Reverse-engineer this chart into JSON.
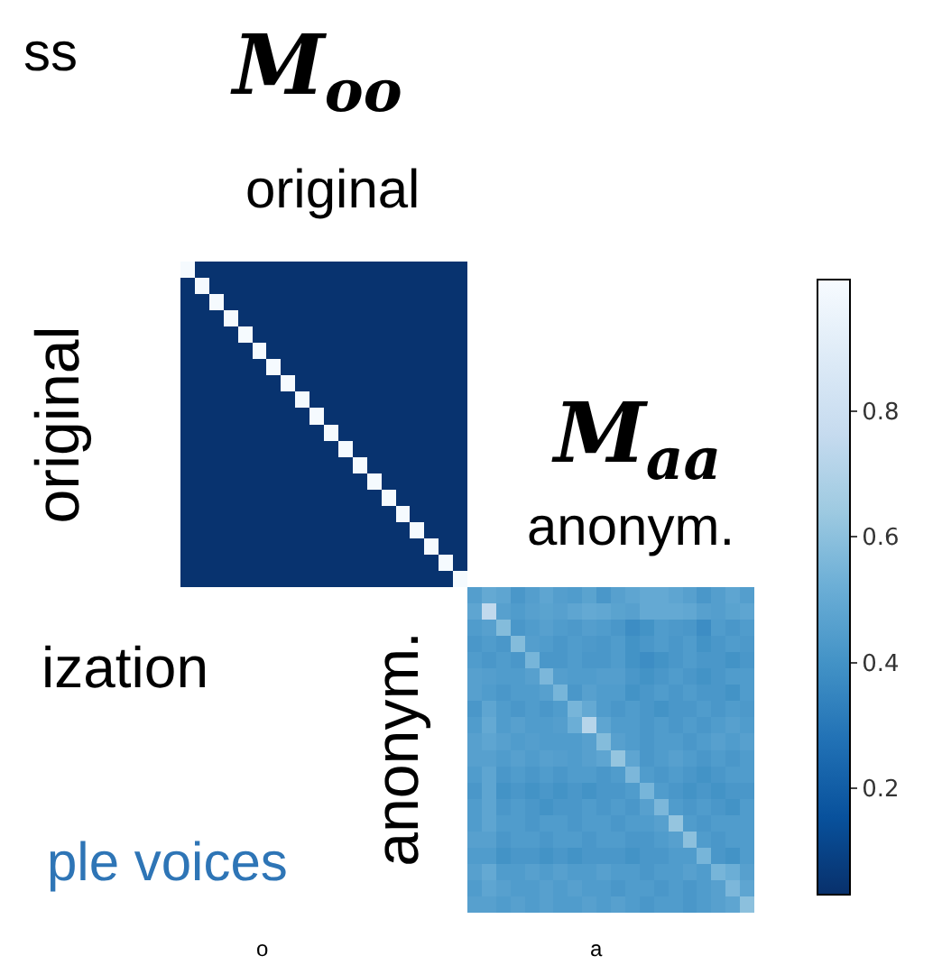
{
  "chart_data": {
    "type": "heatmap",
    "annotations": [
      "M$_{oo}$",
      "original",
      "M$_{aa}$",
      "anonym.",
      "original",
      "anonym.",
      "ss",
      "ization",
      "ple voices",
      "o",
      "a"
    ],
    "categories": [
      null,
      null,
      null,
      null,
      null,
      null,
      null,
      null,
      null,
      null,
      null,
      null,
      null,
      null,
      null,
      null,
      null,
      null,
      null,
      null,
      null,
      null,
      null,
      null,
      null,
      null,
      null,
      null,
      null,
      null,
      null,
      null,
      null,
      null,
      null,
      null,
      null,
      null,
      null,
      null
    ],
    "y_categories": [
      null,
      null,
      null,
      null,
      null,
      null,
      null,
      null,
      null,
      null,
      null,
      null,
      null,
      null,
      null,
      null,
      null,
      null,
      null,
      null,
      null,
      null,
      null,
      null,
      null,
      null,
      null,
      null,
      null,
      null,
      null,
      null,
      null,
      null,
      null,
      null,
      null,
      null,
      null,
      null
    ],
    "clim": [
      0.03,
      1.01
    ],
    "cticks": [
      0.2,
      0.4,
      0.6,
      0.8
    ],
    "cells": [
      [
        1,
        0.04,
        0.04,
        0.04,
        0.04,
        0.04,
        0.04,
        0.04,
        0.04,
        0.04,
        0.04,
        0.04,
        0.04,
        0.04,
        0.04,
        0.04,
        0.04,
        0.04,
        0.04,
        0.04,
        null,
        null,
        null,
        null,
        null,
        null,
        null,
        null,
        null,
        null,
        null,
        null,
        null,
        null,
        null,
        null,
        null,
        null,
        null,
        null
      ],
      [
        0.04,
        1,
        0.04,
        0.04,
        0.04,
        0.04,
        0.04,
        0.04,
        0.04,
        0.04,
        0.04,
        0.04,
        0.04,
        0.04,
        0.04,
        0.04,
        0.04,
        0.04,
        0.04,
        0.04,
        null,
        null,
        null,
        null,
        null,
        null,
        null,
        null,
        null,
        null,
        null,
        null,
        null,
        null,
        null,
        null,
        null,
        null,
        null,
        null
      ],
      [
        0.04,
        0.04,
        1,
        0.04,
        0.04,
        0.04,
        0.04,
        0.04,
        0.04,
        0.04,
        0.04,
        0.04,
        0.04,
        0.04,
        0.04,
        0.04,
        0.04,
        0.04,
        0.04,
        0.04,
        null,
        null,
        null,
        null,
        null,
        null,
        null,
        null,
        null,
        null,
        null,
        null,
        null,
        null,
        null,
        null,
        null,
        null,
        null,
        null
      ],
      [
        0.04,
        0.04,
        0.04,
        1,
        0.04,
        0.04,
        0.04,
        0.04,
        0.04,
        0.04,
        0.04,
        0.04,
        0.04,
        0.04,
        0.04,
        0.04,
        0.04,
        0.04,
        0.04,
        0.04,
        null,
        null,
        null,
        null,
        null,
        null,
        null,
        null,
        null,
        null,
        null,
        null,
        null,
        null,
        null,
        null,
        null,
        null,
        null,
        null
      ],
      [
        0.04,
        0.04,
        0.04,
        0.04,
        1,
        0.04,
        0.04,
        0.04,
        0.04,
        0.04,
        0.04,
        0.04,
        0.04,
        0.04,
        0.04,
        0.04,
        0.04,
        0.04,
        0.04,
        0.04,
        null,
        null,
        null,
        null,
        null,
        null,
        null,
        null,
        null,
        null,
        null,
        null,
        null,
        null,
        null,
        null,
        null,
        null,
        null,
        null
      ],
      [
        0.04,
        0.04,
        0.04,
        0.04,
        0.04,
        1,
        0.04,
        0.04,
        0.04,
        0.04,
        0.04,
        0.04,
        0.04,
        0.04,
        0.04,
        0.04,
        0.04,
        0.04,
        0.04,
        0.04,
        null,
        null,
        null,
        null,
        null,
        null,
        null,
        null,
        null,
        null,
        null,
        null,
        null,
        null,
        null,
        null,
        null,
        null,
        null,
        null
      ],
      [
        0.04,
        0.04,
        0.04,
        0.04,
        0.04,
        0.04,
        1,
        0.04,
        0.04,
        0.04,
        0.04,
        0.04,
        0.04,
        0.04,
        0.04,
        0.04,
        0.04,
        0.04,
        0.04,
        0.04,
        null,
        null,
        null,
        null,
        null,
        null,
        null,
        null,
        null,
        null,
        null,
        null,
        null,
        null,
        null,
        null,
        null,
        null,
        null,
        null
      ],
      [
        0.04,
        0.04,
        0.04,
        0.04,
        0.04,
        0.04,
        0.04,
        1,
        0.04,
        0.04,
        0.04,
        0.04,
        0.04,
        0.04,
        0.04,
        0.04,
        0.04,
        0.04,
        0.04,
        0.04,
        null,
        null,
        null,
        null,
        null,
        null,
        null,
        null,
        null,
        null,
        null,
        null,
        null,
        null,
        null,
        null,
        null,
        null,
        null,
        null
      ],
      [
        0.04,
        0.04,
        0.04,
        0.04,
        0.04,
        0.04,
        0.04,
        0.04,
        1,
        0.04,
        0.04,
        0.04,
        0.04,
        0.04,
        0.04,
        0.04,
        0.04,
        0.04,
        0.04,
        0.04,
        null,
        null,
        null,
        null,
        null,
        null,
        null,
        null,
        null,
        null,
        null,
        null,
        null,
        null,
        null,
        null,
        null,
        null,
        null,
        null
      ],
      [
        0.04,
        0.04,
        0.04,
        0.04,
        0.04,
        0.04,
        0.04,
        0.04,
        0.04,
        1,
        0.04,
        0.04,
        0.04,
        0.04,
        0.04,
        0.04,
        0.04,
        0.04,
        0.04,
        0.04,
        null,
        null,
        null,
        null,
        null,
        null,
        null,
        null,
        null,
        null,
        null,
        null,
        null,
        null,
        null,
        null,
        null,
        null,
        null,
        null
      ],
      [
        0.04,
        0.04,
        0.04,
        0.04,
        0.04,
        0.04,
        0.04,
        0.04,
        0.04,
        0.04,
        1,
        0.04,
        0.04,
        0.04,
        0.04,
        0.04,
        0.04,
        0.04,
        0.04,
        0.04,
        null,
        null,
        null,
        null,
        null,
        null,
        null,
        null,
        null,
        null,
        null,
        null,
        null,
        null,
        null,
        null,
        null,
        null,
        null,
        null
      ],
      [
        0.04,
        0.04,
        0.04,
        0.04,
        0.04,
        0.04,
        0.04,
        0.04,
        0.04,
        0.04,
        0.04,
        1,
        0.04,
        0.04,
        0.04,
        0.04,
        0.04,
        0.04,
        0.04,
        0.04,
        null,
        null,
        null,
        null,
        null,
        null,
        null,
        null,
        null,
        null,
        null,
        null,
        null,
        null,
        null,
        null,
        null,
        null,
        null,
        null
      ],
      [
        0.04,
        0.04,
        0.04,
        0.04,
        0.04,
        0.04,
        0.04,
        0.04,
        0.04,
        0.04,
        0.04,
        0.04,
        1,
        0.04,
        0.04,
        0.04,
        0.04,
        0.04,
        0.04,
        0.04,
        null,
        null,
        null,
        null,
        null,
        null,
        null,
        null,
        null,
        null,
        null,
        null,
        null,
        null,
        null,
        null,
        null,
        null,
        null,
        null
      ],
      [
        0.04,
        0.04,
        0.04,
        0.04,
        0.04,
        0.04,
        0.04,
        0.04,
        0.04,
        0.04,
        0.04,
        0.04,
        0.04,
        1,
        0.04,
        0.04,
        0.04,
        0.04,
        0.04,
        0.04,
        null,
        null,
        null,
        null,
        null,
        null,
        null,
        null,
        null,
        null,
        null,
        null,
        null,
        null,
        null,
        null,
        null,
        null,
        null,
        null
      ],
      [
        0.04,
        0.04,
        0.04,
        0.04,
        0.04,
        0.04,
        0.04,
        0.04,
        0.04,
        0.04,
        0.04,
        0.04,
        0.04,
        0.04,
        1,
        0.04,
        0.04,
        0.04,
        0.04,
        0.04,
        null,
        null,
        null,
        null,
        null,
        null,
        null,
        null,
        null,
        null,
        null,
        null,
        null,
        null,
        null,
        null,
        null,
        null,
        null,
        null
      ],
      [
        0.04,
        0.04,
        0.04,
        0.04,
        0.04,
        0.04,
        0.04,
        0.04,
        0.04,
        0.04,
        0.04,
        0.04,
        0.04,
        0.04,
        0.04,
        1,
        0.04,
        0.04,
        0.04,
        0.04,
        null,
        null,
        null,
        null,
        null,
        null,
        null,
        null,
        null,
        null,
        null,
        null,
        null,
        null,
        null,
        null,
        null,
        null,
        null,
        null
      ],
      [
        0.04,
        0.04,
        0.04,
        0.04,
        0.04,
        0.04,
        0.04,
        0.04,
        0.04,
        0.04,
        0.04,
        0.04,
        0.04,
        0.04,
        0.04,
        0.04,
        1,
        0.04,
        0.04,
        0.04,
        null,
        null,
        null,
        null,
        null,
        null,
        null,
        null,
        null,
        null,
        null,
        null,
        null,
        null,
        null,
        null,
        null,
        null,
        null,
        null
      ],
      [
        0.04,
        0.04,
        0.04,
        0.04,
        0.04,
        0.04,
        0.04,
        0.04,
        0.04,
        0.04,
        0.04,
        0.04,
        0.04,
        0.04,
        0.04,
        0.04,
        0.04,
        1,
        0.04,
        0.04,
        null,
        null,
        null,
        null,
        null,
        null,
        null,
        null,
        null,
        null,
        null,
        null,
        null,
        null,
        null,
        null,
        null,
        null,
        null,
        null
      ],
      [
        0.04,
        0.04,
        0.04,
        0.04,
        0.04,
        0.04,
        0.04,
        0.04,
        0.04,
        0.04,
        0.04,
        0.04,
        0.04,
        0.04,
        0.04,
        0.04,
        0.04,
        0.04,
        1,
        0.04,
        null,
        null,
        null,
        null,
        null,
        null,
        null,
        null,
        null,
        null,
        null,
        null,
        null,
        null,
        null,
        null,
        null,
        null,
        null,
        null
      ],
      [
        0.04,
        0.04,
        0.04,
        0.04,
        0.04,
        0.04,
        0.04,
        0.04,
        0.04,
        0.04,
        0.04,
        0.04,
        0.04,
        0.04,
        0.04,
        0.04,
        0.04,
        0.04,
        0.04,
        1,
        null,
        null,
        null,
        null,
        null,
        null,
        null,
        null,
        null,
        null,
        null,
        null,
        null,
        null,
        null,
        null,
        null,
        null,
        null,
        null
      ],
      [
        null,
        null,
        null,
        null,
        null,
        null,
        null,
        null,
        null,
        null,
        null,
        null,
        null,
        null,
        null,
        null,
        null,
        null,
        null,
        null,
        0.45,
        0.5,
        0.48,
        0.42,
        0.45,
        0.48,
        0.45,
        0.44,
        0.47,
        0.42,
        0.46,
        0.48,
        0.5,
        0.5,
        0.48,
        0.46,
        0.42,
        0.45,
        0.48,
        0.45
      ],
      [
        null,
        null,
        null,
        null,
        null,
        null,
        null,
        null,
        null,
        null,
        null,
        null,
        null,
        null,
        null,
        null,
        null,
        null,
        null,
        null,
        0.48,
        0.75,
        0.46,
        0.44,
        0.46,
        0.47,
        0.46,
        0.48,
        0.5,
        0.49,
        0.47,
        0.46,
        0.5,
        0.5,
        0.5,
        0.49,
        0.46,
        0.45,
        0.47,
        0.48
      ],
      [
        null,
        null,
        null,
        null,
        null,
        null,
        null,
        null,
        null,
        null,
        null,
        null,
        null,
        null,
        null,
        null,
        null,
        null,
        null,
        null,
        0.44,
        0.46,
        0.58,
        0.42,
        0.44,
        0.46,
        0.44,
        0.43,
        0.45,
        0.44,
        0.42,
        0.38,
        0.4,
        0.44,
        0.43,
        0.42,
        0.38,
        0.44,
        0.42,
        0.44
      ],
      [
        null,
        null,
        null,
        null,
        null,
        null,
        null,
        null,
        null,
        null,
        null,
        null,
        null,
        null,
        null,
        null,
        null,
        null,
        null,
        null,
        0.42,
        0.44,
        0.42,
        0.58,
        0.45,
        0.44,
        0.42,
        0.44,
        0.43,
        0.42,
        0.44,
        0.4,
        0.42,
        0.44,
        0.42,
        0.44,
        0.4,
        0.42,
        0.44,
        0.43
      ],
      [
        null,
        null,
        null,
        null,
        null,
        null,
        null,
        null,
        null,
        null,
        null,
        null,
        null,
        null,
        null,
        null,
        null,
        null,
        null,
        null,
        0.44,
        0.42,
        0.44,
        0.42,
        0.55,
        0.42,
        0.42,
        0.44,
        0.42,
        0.42,
        0.44,
        0.4,
        0.38,
        0.4,
        0.42,
        0.44,
        0.42,
        0.42,
        0.4,
        0.42
      ],
      [
        null,
        null,
        null,
        null,
        null,
        null,
        null,
        null,
        null,
        null,
        null,
        null,
        null,
        null,
        null,
        null,
        null,
        null,
        null,
        null,
        0.46,
        0.45,
        0.44,
        0.44,
        0.46,
        0.56,
        0.45,
        0.44,
        0.44,
        0.45,
        0.45,
        0.42,
        0.4,
        0.42,
        0.44,
        0.42,
        0.4,
        0.42,
        0.44,
        0.44
      ],
      [
        null,
        null,
        null,
        null,
        null,
        null,
        null,
        null,
        null,
        null,
        null,
        null,
        null,
        null,
        null,
        null,
        null,
        null,
        null,
        null,
        0.46,
        0.44,
        0.42,
        0.44,
        0.44,
        0.46,
        0.55,
        0.42,
        0.46,
        0.44,
        0.44,
        0.4,
        0.42,
        0.44,
        0.42,
        0.44,
        0.42,
        0.42,
        0.4,
        0.44
      ],
      [
        null,
        null,
        null,
        null,
        null,
        null,
        null,
        null,
        null,
        null,
        null,
        null,
        null,
        null,
        null,
        null,
        null,
        null,
        null,
        null,
        0.42,
        0.48,
        0.44,
        0.42,
        0.44,
        0.42,
        0.44,
        0.55,
        0.5,
        0.44,
        0.42,
        0.44,
        0.42,
        0.4,
        0.42,
        0.42,
        0.44,
        0.42,
        0.44,
        0.43
      ],
      [
        null,
        null,
        null,
        null,
        null,
        null,
        null,
        null,
        null,
        null,
        null,
        null,
        null,
        null,
        null,
        null,
        null,
        null,
        null,
        null,
        0.44,
        0.5,
        0.44,
        0.46,
        0.44,
        0.44,
        0.45,
        0.52,
        0.72,
        0.48,
        0.44,
        0.44,
        0.42,
        0.44,
        0.42,
        0.44,
        0.42,
        0.44,
        0.46,
        0.44
      ],
      [
        null,
        null,
        null,
        null,
        null,
        null,
        null,
        null,
        null,
        null,
        null,
        null,
        null,
        null,
        null,
        null,
        null,
        null,
        null,
        null,
        0.46,
        0.48,
        0.46,
        0.44,
        0.45,
        0.44,
        0.44,
        0.44,
        0.46,
        0.58,
        0.46,
        0.44,
        0.42,
        0.44,
        0.44,
        0.42,
        0.44,
        0.46,
        0.44,
        0.46
      ],
      [
        null,
        null,
        null,
        null,
        null,
        null,
        null,
        null,
        null,
        null,
        null,
        null,
        null,
        null,
        null,
        null,
        null,
        null,
        null,
        null,
        0.46,
        0.46,
        0.44,
        0.46,
        0.44,
        0.46,
        0.45,
        0.44,
        0.46,
        0.48,
        0.62,
        0.48,
        0.42,
        0.44,
        0.46,
        0.44,
        0.42,
        0.44,
        0.42,
        0.44
      ],
      [
        null,
        null,
        null,
        null,
        null,
        null,
        null,
        null,
        null,
        null,
        null,
        null,
        null,
        null,
        null,
        null,
        null,
        null,
        null,
        null,
        0.44,
        0.48,
        0.42,
        0.44,
        0.42,
        0.44,
        0.42,
        0.44,
        0.44,
        0.42,
        0.44,
        0.56,
        0.44,
        0.42,
        0.44,
        0.42,
        0.4,
        0.42,
        0.44,
        0.44
      ],
      [
        null,
        null,
        null,
        null,
        null,
        null,
        null,
        null,
        null,
        null,
        null,
        null,
        null,
        null,
        null,
        null,
        null,
        null,
        null,
        null,
        0.42,
        0.48,
        0.4,
        0.42,
        0.4,
        0.42,
        0.4,
        0.42,
        0.4,
        0.42,
        0.42,
        0.44,
        0.55,
        0.44,
        0.42,
        0.4,
        0.42,
        0.4,
        0.42,
        0.42
      ],
      [
        null,
        null,
        null,
        null,
        null,
        null,
        null,
        null,
        null,
        null,
        null,
        null,
        null,
        null,
        null,
        null,
        null,
        null,
        null,
        null,
        0.44,
        0.48,
        0.42,
        0.44,
        0.42,
        0.4,
        0.42,
        0.42,
        0.44,
        0.42,
        0.44,
        0.42,
        0.46,
        0.56,
        0.44,
        0.42,
        0.44,
        0.42,
        0.4,
        0.44
      ],
      [
        null,
        null,
        null,
        null,
        null,
        null,
        null,
        null,
        null,
        null,
        null,
        null,
        null,
        null,
        null,
        null,
        null,
        null,
        null,
        null,
        0.44,
        0.48,
        0.44,
        0.44,
        0.42,
        0.44,
        0.44,
        0.42,
        0.44,
        0.44,
        0.42,
        0.44,
        0.44,
        0.46,
        0.62,
        0.44,
        0.42,
        0.44,
        0.44,
        0.44
      ],
      [
        null,
        null,
        null,
        null,
        null,
        null,
        null,
        null,
        null,
        null,
        null,
        null,
        null,
        null,
        null,
        null,
        null,
        null,
        null,
        null,
        0.46,
        0.46,
        0.42,
        0.44,
        0.44,
        0.42,
        0.44,
        0.44,
        0.42,
        0.44,
        0.44,
        0.42,
        0.42,
        0.44,
        0.46,
        0.6,
        0.44,
        0.42,
        0.44,
        0.44
      ],
      [
        null,
        null,
        null,
        null,
        null,
        null,
        null,
        null,
        null,
        null,
        null,
        null,
        null,
        null,
        null,
        null,
        null,
        null,
        null,
        null,
        0.44,
        0.44,
        0.4,
        0.42,
        0.42,
        0.4,
        0.42,
        0.4,
        0.42,
        0.42,
        0.42,
        0.4,
        0.42,
        0.42,
        0.44,
        0.44,
        0.55,
        0.42,
        0.4,
        0.44
      ],
      [
        null,
        null,
        null,
        null,
        null,
        null,
        null,
        null,
        null,
        null,
        null,
        null,
        null,
        null,
        null,
        null,
        null,
        null,
        null,
        null,
        0.46,
        0.5,
        0.44,
        0.44,
        0.46,
        0.44,
        0.46,
        0.44,
        0.44,
        0.46,
        0.44,
        0.44,
        0.42,
        0.44,
        0.44,
        0.46,
        0.44,
        0.55,
        0.52,
        0.46
      ],
      [
        null,
        null,
        null,
        null,
        null,
        null,
        null,
        null,
        null,
        null,
        null,
        null,
        null,
        null,
        null,
        null,
        null,
        null,
        null,
        null,
        0.44,
        0.48,
        0.46,
        0.44,
        0.44,
        0.46,
        0.44,
        0.46,
        0.44,
        0.44,
        0.42,
        0.44,
        0.44,
        0.42,
        0.44,
        0.42,
        0.44,
        0.46,
        0.56,
        0.48
      ],
      [
        null,
        null,
        null,
        null,
        null,
        null,
        null,
        null,
        null,
        null,
        null,
        null,
        null,
        null,
        null,
        null,
        null,
        null,
        null,
        null,
        0.46,
        0.46,
        0.44,
        0.46,
        0.44,
        0.46,
        0.44,
        0.44,
        0.46,
        0.44,
        0.46,
        0.44,
        0.42,
        0.44,
        0.44,
        0.42,
        0.44,
        0.46,
        0.48,
        0.6
      ]
    ]
  }
}
